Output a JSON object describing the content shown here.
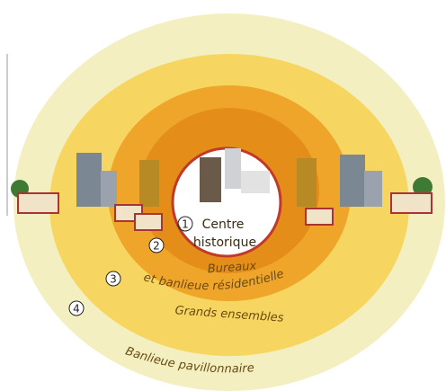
{
  "rings": [
    {
      "number": "1",
      "label": [
        "Centre",
        "historique"
      ]
    },
    {
      "number": "2",
      "label": [
        "Bureaux",
        "et banlieue résidentielle"
      ]
    },
    {
      "number": "3",
      "label": [
        "Grands ensembles"
      ]
    },
    {
      "number": "4",
      "label": [
        "Banlieue pavillonnaire"
      ]
    }
  ]
}
